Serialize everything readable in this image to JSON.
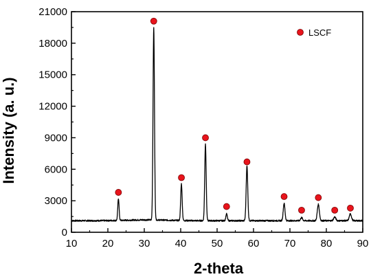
{
  "chart_data": {
    "type": "line",
    "xlabel": "2-theta",
    "ylabel": "Intensity (a. u.)",
    "xlim": [
      10,
      90
    ],
    "ylim": [
      0,
      21000
    ],
    "x_ticks": [
      10,
      20,
      30,
      40,
      50,
      60,
      70,
      80,
      90
    ],
    "y_ticks": [
      0,
      3000,
      6000,
      9000,
      12000,
      15000,
      18000,
      21000
    ],
    "baseline": 1100,
    "peaks": [
      {
        "x": 22.9,
        "y": 3200
      },
      {
        "x": 32.6,
        "y": 19400
      },
      {
        "x": 40.2,
        "y": 4600
      },
      {
        "x": 46.8,
        "y": 8400
      },
      {
        "x": 52.6,
        "y": 1750
      },
      {
        "x": 58.2,
        "y": 6300
      },
      {
        "x": 68.4,
        "y": 2750
      },
      {
        "x": 73.2,
        "y": 1400
      },
      {
        "x": 77.8,
        "y": 2650
      },
      {
        "x": 82.3,
        "y": 1450
      },
      {
        "x": 86.6,
        "y": 1750
      }
    ],
    "series": [
      {
        "name": "LSCF",
        "marker_color": "#e8141c",
        "markers": [
          {
            "x": 22.9,
            "y": 3800
          },
          {
            "x": 32.6,
            "y": 20100
          },
          {
            "x": 40.2,
            "y": 5200
          },
          {
            "x": 46.8,
            "y": 9000
          },
          {
            "x": 52.6,
            "y": 2450
          },
          {
            "x": 58.2,
            "y": 6700
          },
          {
            "x": 68.4,
            "y": 3400
          },
          {
            "x": 73.2,
            "y": 2100
          },
          {
            "x": 77.8,
            "y": 3300
          },
          {
            "x": 82.3,
            "y": 2100
          },
          {
            "x": 86.6,
            "y": 2300
          }
        ]
      }
    ],
    "legend": {
      "position": "top-right",
      "label": "LSCF"
    },
    "line_color": "#000000",
    "grid": false
  }
}
